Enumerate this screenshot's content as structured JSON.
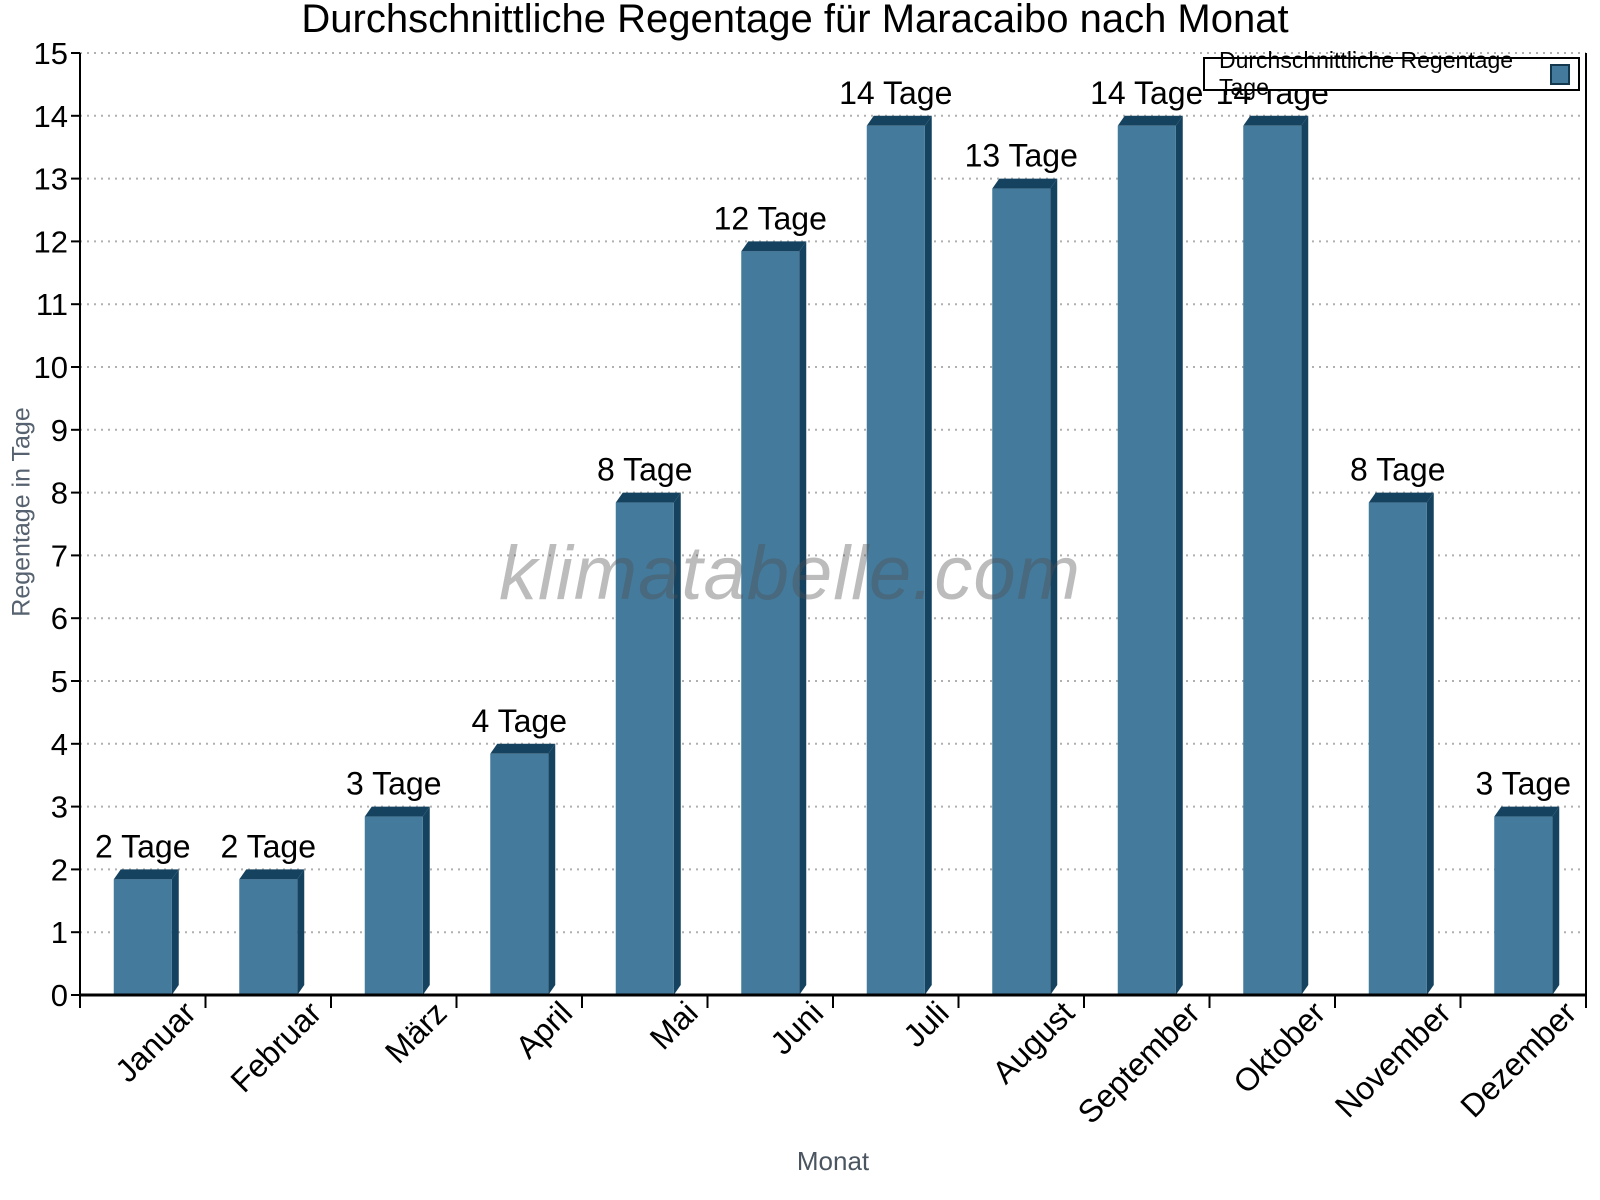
{
  "title": "Durchschnittliche Regentage für Maracaibo nach Monat",
  "watermark": {
    "text": "klimatabelle.com"
  },
  "legend": {
    "label": "Durchschnittliche Regentage Tage"
  },
  "chart_data": {
    "type": "bar",
    "title": "Durchschnittliche Regentage für Maracaibo nach Monat",
    "xlabel": "Monat",
    "ylabel": "Regentage in Tage",
    "categories": [
      "Januar",
      "Februar",
      "März",
      "April",
      "Mai",
      "Juni",
      "Juli",
      "August",
      "September",
      "Oktober",
      "November",
      "Dezember"
    ],
    "values": [
      2,
      2,
      3,
      4,
      8,
      12,
      14,
      13,
      14,
      14,
      8,
      3
    ],
    "bar_labels": [
      "2 Tage",
      "2 Tage",
      "3 Tage",
      "4 Tage",
      "8 Tage",
      "12 Tage",
      "14 Tage",
      "13 Tage",
      "14 Tage",
      "14 Tage",
      "8 Tage",
      "3 Tage"
    ],
    "ylim": [
      0,
      15
    ],
    "yticks": [
      0,
      1,
      2,
      3,
      4,
      5,
      6,
      7,
      8,
      9,
      10,
      11,
      12,
      13,
      14,
      15
    ],
    "grid": "horizontal-dotted",
    "legend_position": "top-right",
    "series_name": "Durchschnittliche Regentage Tage",
    "bar_color": "#447A9C",
    "bar_edge_color": "#15425F",
    "grid_color": "#B0B0B0",
    "axis_color": "#000000",
    "label_color": "#000000"
  }
}
